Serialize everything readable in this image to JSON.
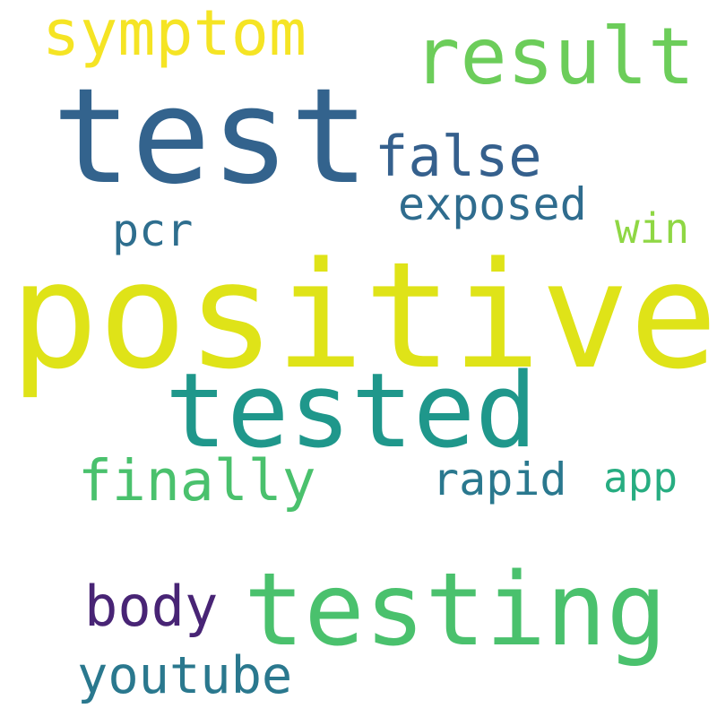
{
  "words": [
    {
      "text": "symptom",
      "color": "#f5e424"
    },
    {
      "text": "result",
      "color": "#6ccd5a"
    },
    {
      "text": "test",
      "color": "#33638d"
    },
    {
      "text": "false",
      "color": "#35608d"
    },
    {
      "text": "exposed",
      "color": "#2f6c8e"
    },
    {
      "text": "pcr",
      "color": "#2e6e8e"
    },
    {
      "text": "win",
      "color": "#8fd744"
    },
    {
      "text": "positive",
      "color": "#dfe318"
    },
    {
      "text": "tested",
      "color": "#1f978b"
    },
    {
      "text": "finally",
      "color": "#4ac16d"
    },
    {
      "text": "rapid",
      "color": "#2a788e"
    },
    {
      "text": "app",
      "color": "#27ad81"
    },
    {
      "text": "testing",
      "color": "#4ac16d"
    },
    {
      "text": "body",
      "color": "#482475"
    },
    {
      "text": "youtube",
      "color": "#2a788e"
    }
  ]
}
